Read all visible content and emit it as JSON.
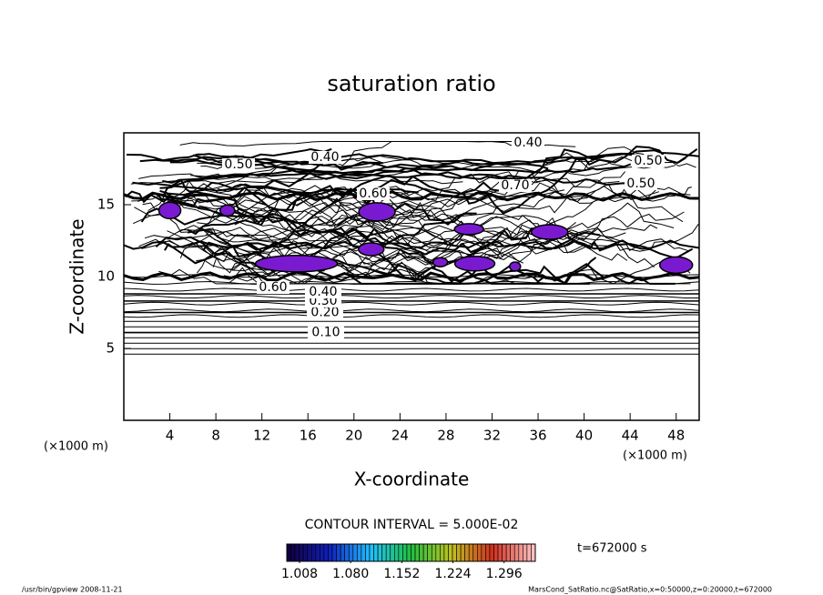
{
  "chart_data": {
    "type": "contour",
    "title": "saturation ratio",
    "x_label": "X-coordinate",
    "y_label": "Z-coordinate",
    "x_units": [
      "(×1000 m)",
      "(×1000 m)"
    ],
    "xlim": [
      0,
      50
    ],
    "xticks": [
      4,
      8,
      12,
      16,
      20,
      24,
      28,
      32,
      36,
      40,
      44,
      48
    ],
    "ylim": [
      0,
      20
    ],
    "yticks": [
      5,
      10,
      15
    ],
    "contours": [
      {
        "level": {
          "value": 0.1,
          "label": "0.10"
        },
        "z": 6.1
      },
      {
        "level": {
          "value": 0.2,
          "label": "0.20"
        },
        "z": 7.5
      },
      {
        "level": {
          "value": 0.3,
          "label": "0.30"
        },
        "z": 8.3
      },
      {
        "level": {
          "value": 0.4,
          "label": "0.40"
        },
        "z": 8.8
      }
    ],
    "contour_labels": [
      "0.40",
      "0.50",
      "0.60",
      "0.40",
      "0.50",
      "0.70",
      "0.50",
      "0.60"
    ],
    "patch_color": "#7a1ad0",
    "contour_interval": "CONTOUR INTERVAL = 5.000E-02",
    "colorbar": {
      "clim": [
        0.99,
        1.34
      ],
      "ticks": [
        1.008,
        {
          "value": 1.08,
          "label": "1.080"
        },
        1.152,
        1.224,
        1.296
      ],
      "colors": [
        "#100040",
        "#1020c0",
        "#20c0ff",
        "#20c040",
        "#c0c020",
        "#d03020",
        "#ffc0c0"
      ]
    },
    "time_label": "t=672000 s",
    "footer_left": "/usr/bin/gpview  2008-11-21",
    "footer_right": "MarsCond_SatRatio.nc@SatRatio,x=0:50000,z=0:20000,t=672000"
  }
}
